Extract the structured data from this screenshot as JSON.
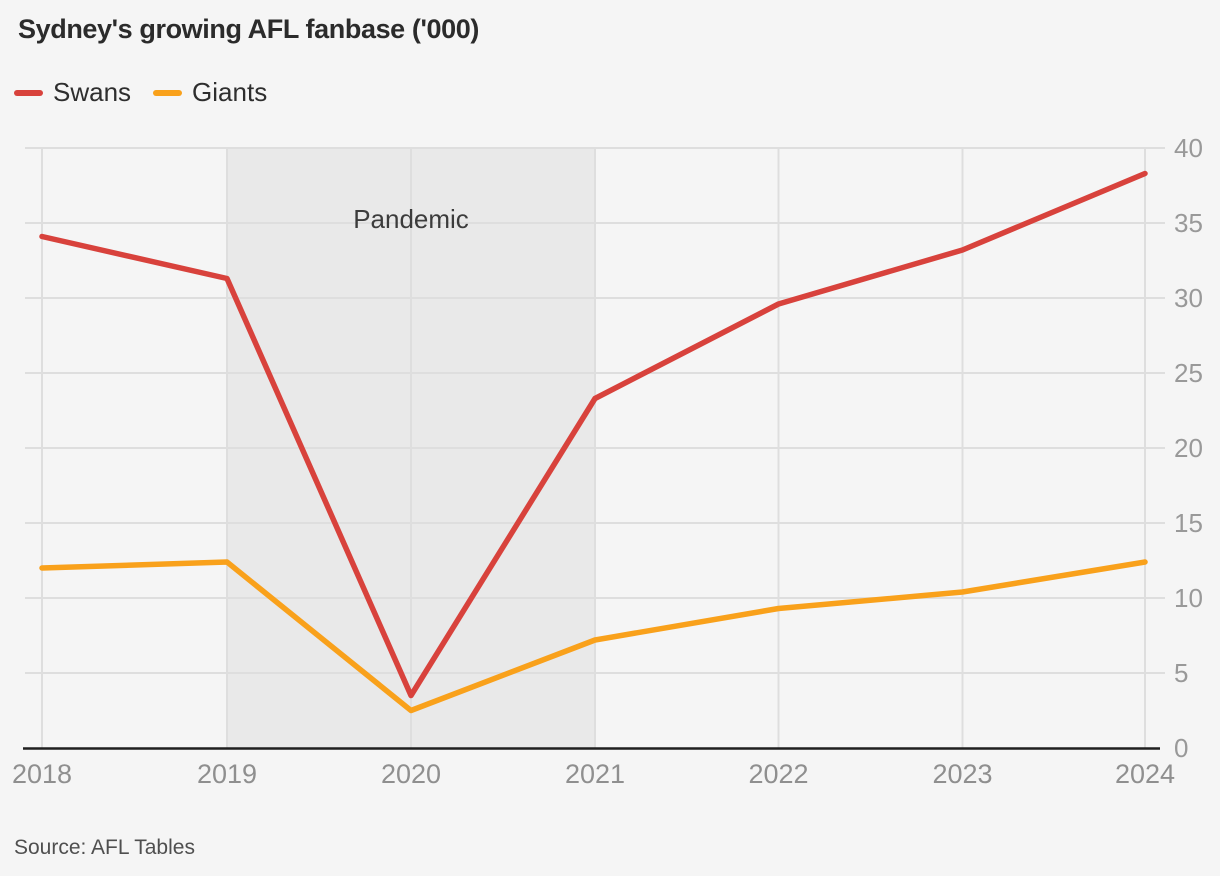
{
  "chart": {
    "title": "Sydney's growing AFL fanbase ('000)",
    "source": "Source: AFL Tables"
  },
  "chart_data": {
    "type": "line",
    "title": "Sydney's growing AFL fanbase ('000)",
    "categories": [
      2018,
      2019,
      2020,
      2021,
      2022,
      2023,
      2024
    ],
    "series": [
      {
        "name": "Swans",
        "color": "#d8423c",
        "values": [
          34.1,
          31.3,
          3.5,
          23.3,
          29.6,
          33.2,
          38.3
        ]
      },
      {
        "name": "Giants",
        "color": "#f9a11b",
        "values": [
          12.0,
          12.4,
          2.5,
          7.2,
          9.3,
          10.4,
          12.4
        ]
      }
    ],
    "ylim": [
      0,
      40
    ],
    "y_ticks": [
      0,
      5,
      10,
      15,
      20,
      25,
      30,
      35,
      40
    ],
    "y_axis_side": "right",
    "grid": true,
    "legend_position": "top-left",
    "annotation_band": {
      "label": "Pandemic",
      "x_from": 2019,
      "x_to": 2021,
      "color": "#e9e9e9"
    },
    "source": "Source: AFL Tables",
    "colors": {
      "background": "#f5f5f5",
      "gridline": "#dedede",
      "axis_line": "#1f1f1f",
      "tick_label": "#999999",
      "band_label": "#3c3c3c"
    }
  }
}
